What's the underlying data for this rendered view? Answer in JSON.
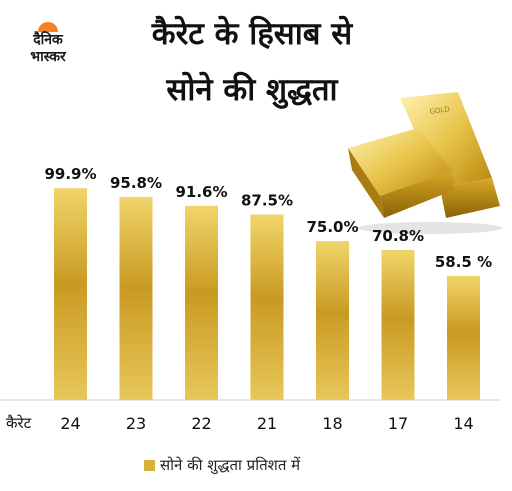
{
  "logo": {
    "line1": "दैनिक",
    "line2": "भास्कर"
  },
  "title": {
    "line1": "कैरेट के हिसाब से",
    "line2": "सोने की शुद्धता"
  },
  "chart_data": {
    "type": "bar",
    "xlabel": "कैरेट",
    "categories": [
      "24",
      "23",
      "22",
      "21",
      "18",
      "17",
      "14"
    ],
    "values": [
      99.9,
      95.8,
      91.6,
      87.5,
      75.0,
      70.8,
      58.5
    ],
    "data_labels": [
      "99.9%",
      "95.8%",
      "91.6%",
      "87.5%",
      "75.0%",
      "70.8%",
      "58.5 %"
    ],
    "series": [
      {
        "name": "सोने की शुद्धता प्रतिशत में",
        "values": [
          99.9,
          95.8,
          91.6,
          87.5,
          75.0,
          70.8,
          58.5
        ]
      }
    ],
    "ylim": [
      0,
      100
    ],
    "grid": false,
    "legend_position": "bottom",
    "bar_color": "#d7b13a"
  }
}
